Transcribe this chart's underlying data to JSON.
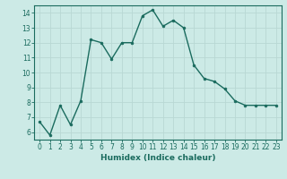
{
  "x": [
    0,
    1,
    2,
    3,
    4,
    5,
    6,
    7,
    8,
    9,
    10,
    11,
    12,
    13,
    14,
    15,
    16,
    17,
    18,
    19,
    20,
    21,
    22,
    23
  ],
  "y": [
    6.7,
    5.8,
    7.8,
    6.5,
    8.1,
    12.2,
    12.0,
    10.9,
    12.0,
    12.0,
    13.8,
    14.2,
    13.1,
    13.5,
    13.0,
    10.5,
    9.6,
    9.4,
    8.9,
    8.1,
    7.8,
    7.8,
    7.8,
    7.8
  ],
  "xlabel": "Humidex (Indice chaleur)",
  "ylim": [
    5.5,
    14.5
  ],
  "xlim": [
    -0.5,
    23.5
  ],
  "yticks": [
    6,
    7,
    8,
    9,
    10,
    11,
    12,
    13,
    14
  ],
  "xticks": [
    0,
    1,
    2,
    3,
    4,
    5,
    6,
    7,
    8,
    9,
    10,
    11,
    12,
    13,
    14,
    15,
    16,
    17,
    18,
    19,
    20,
    21,
    22,
    23
  ],
  "line_color": "#1a6b5e",
  "bg_color": "#cceae6",
  "grid_color": "#b8d8d4",
  "marker": "o",
  "marker_size": 2.0,
  "line_width": 1.0,
  "tick_fontsize": 5.5,
  "xlabel_fontsize": 6.5
}
